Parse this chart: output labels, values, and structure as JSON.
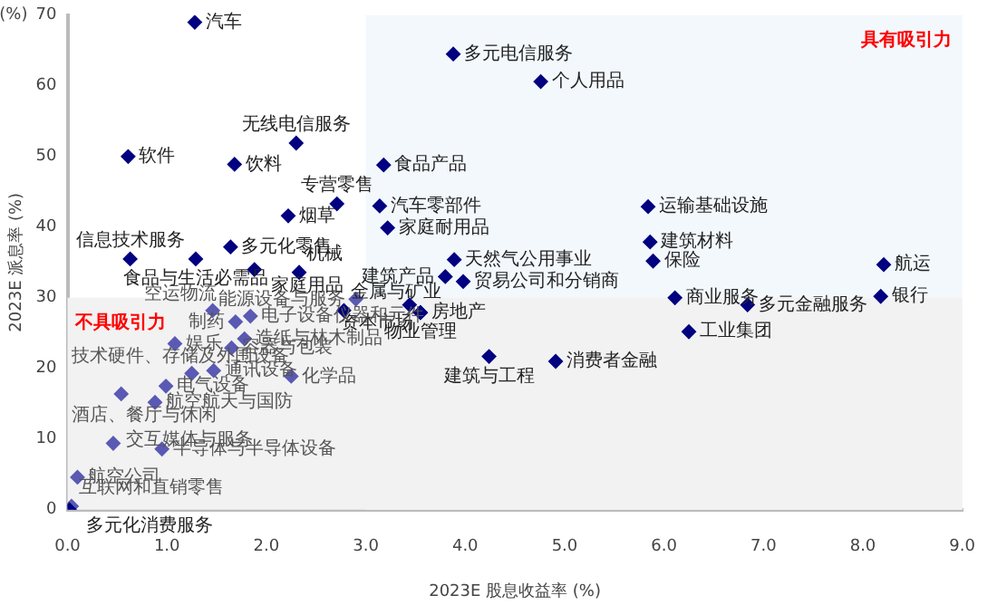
{
  "chart_data": {
    "type": "scatter",
    "xlabel": "2023E 股息收益率 (%)",
    "ylabel": "2023E 派息率 (%)",
    "annotations": [
      "(%)"
    ],
    "marker": "diamond",
    "grid": false,
    "xlim": [
      0,
      9
    ],
    "xticks": [
      {
        "value": 0,
        "label": "0.0"
      },
      {
        "value": 1,
        "label": "1.0"
      },
      {
        "value": 2,
        "label": "2.0"
      },
      {
        "value": 3,
        "label": "3.0"
      },
      {
        "value": 4,
        "label": "4.0"
      },
      {
        "value": 5,
        "label": "5.0"
      },
      {
        "value": 6,
        "label": "6.0"
      },
      {
        "value": 7,
        "label": "7.0"
      },
      {
        "value": 8,
        "label": "8.0"
      },
      {
        "value": 9,
        "label": "9.0"
      }
    ],
    "ylim": [
      0,
      70
    ],
    "yticks": [
      0,
      10,
      20,
      30,
      40,
      50,
      60,
      70
    ],
    "bands": [
      {
        "axis": "x",
        "from": 3,
        "to": 9,
        "label": "具有吸引力",
        "color": "#f3f8fd"
      },
      {
        "axis": "y",
        "from": 0,
        "to": 30,
        "label": "不具吸引力",
        "color": "#f2f2f2"
      }
    ],
    "series": [
      {
        "color": "#000080",
        "x": [
          1.28,
          0.61,
          1.68,
          2.3,
          2.71,
          2.22,
          1.64,
          0.63,
          1.29,
          1.88,
          2.33,
          2.78,
          3.88,
          4.76,
          3.18,
          3.14,
          3.22,
          3.89,
          3.8,
          3.98,
          3.44,
          3.55,
          3.55,
          4.24,
          4.91,
          5.84,
          5.86,
          5.89,
          8.21,
          6.11,
          6.84,
          8.18,
          6.25,
          0.02
        ],
        "values": [
          69,
          50,
          48.9,
          51.9,
          43.3,
          41.6,
          37.2,
          35.5,
          35.5,
          34,
          33.6,
          28.2,
          64.5,
          60.6,
          48.8,
          43,
          39.9,
          35.4,
          33,
          32.3,
          29,
          27.9,
          27.9,
          21.7,
          21,
          42.9,
          37.9,
          35.2,
          34.7,
          30,
          29,
          30.2,
          25.2,
          0
        ],
        "value_labels": [
          "汽车",
          "软件",
          "饮料",
          "无线电信服务",
          "专营零售",
          "烟草",
          "多元化零售",
          "信息技术服务",
          "食品与生活必需品",
          "家庭用品",
          "机械",
          "金属与矿业",
          "多元电信服务",
          "个人用品",
          "食品产品",
          "汽车零部件",
          "家庭耐用品",
          "天然气公用事业",
          "建筑产品",
          "贸易公司和分销商",
          "资本市场",
          "房地产",
          "物业管理",
          "建筑与工程",
          "消费者金融",
          "运输基础设施",
          "建筑材料",
          "保险",
          "航运",
          "商业服务",
          "多元金融服务",
          "银行",
          "工业集团",
          "多元化消费服务"
        ]
      },
      {
        "color": "#5a5ab4",
        "x": [
          2.9,
          1.84,
          1.46,
          1.69,
          1.08,
          1.78,
          1.65,
          1.25,
          1.47,
          2.25,
          0.54,
          0.99,
          0.88,
          0.46,
          0.95,
          0.1,
          0.04
        ],
        "values": [
          29.8,
          27.4,
          28.2,
          26.6,
          23.5,
          24.2,
          22.9,
          19.3,
          19.7,
          18.9,
          16.4,
          17.5,
          15.2,
          9.4,
          8.6,
          4.6,
          0.5
        ],
        "value_labels": [
          "能源设备与服务",
          "电子设备仪器和元件",
          "空运物流",
          "制药",
          "娱乐",
          "造纸与林木制品",
          "容器与包装",
          "技术硬件、存储及外围设备",
          "通讯设备",
          "化学品",
          "酒店、餐厅与休闲",
          "电气设备",
          "航空航天与国防",
          "交互媒体与服务",
          "半导体与半导体设备",
          "航空公司",
          "互联网和直销零售"
        ]
      }
    ]
  }
}
